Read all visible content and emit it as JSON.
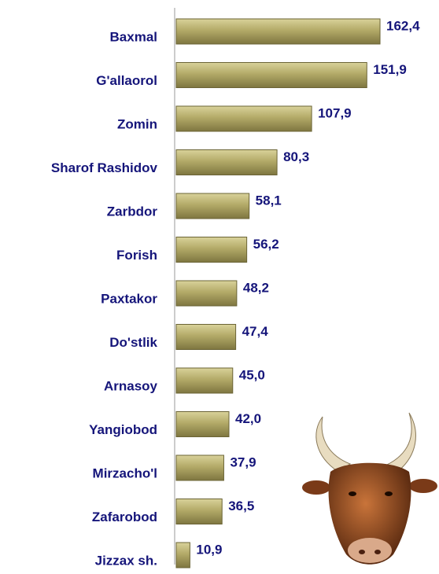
{
  "chart_data": {
    "type": "bar",
    "orientation": "horizontal",
    "categories": [
      "Baxmal",
      "G'allaorol",
      "Zomin",
      "Sharof Rashidov",
      "Zarbdor",
      "Forish",
      "Paxtakor",
      "Do'stlik",
      "Arnasoy",
      "Yangiobod",
      "Mirzacho'l",
      "Zafarobod",
      "Jizzax sh."
    ],
    "values": [
      162.4,
      151.9,
      107.9,
      80.3,
      58.1,
      56.2,
      48.2,
      47.4,
      45.0,
      42.0,
      37.9,
      36.5,
      10.9
    ],
    "value_labels": [
      "162,4",
      "151,9",
      "107,9",
      "80,3",
      "58,1",
      "56,2",
      "48,2",
      "47,4",
      "45,0",
      "42,0",
      "37,9",
      "36,5",
      "10,9"
    ],
    "color": "#a69d5a"
  }
}
